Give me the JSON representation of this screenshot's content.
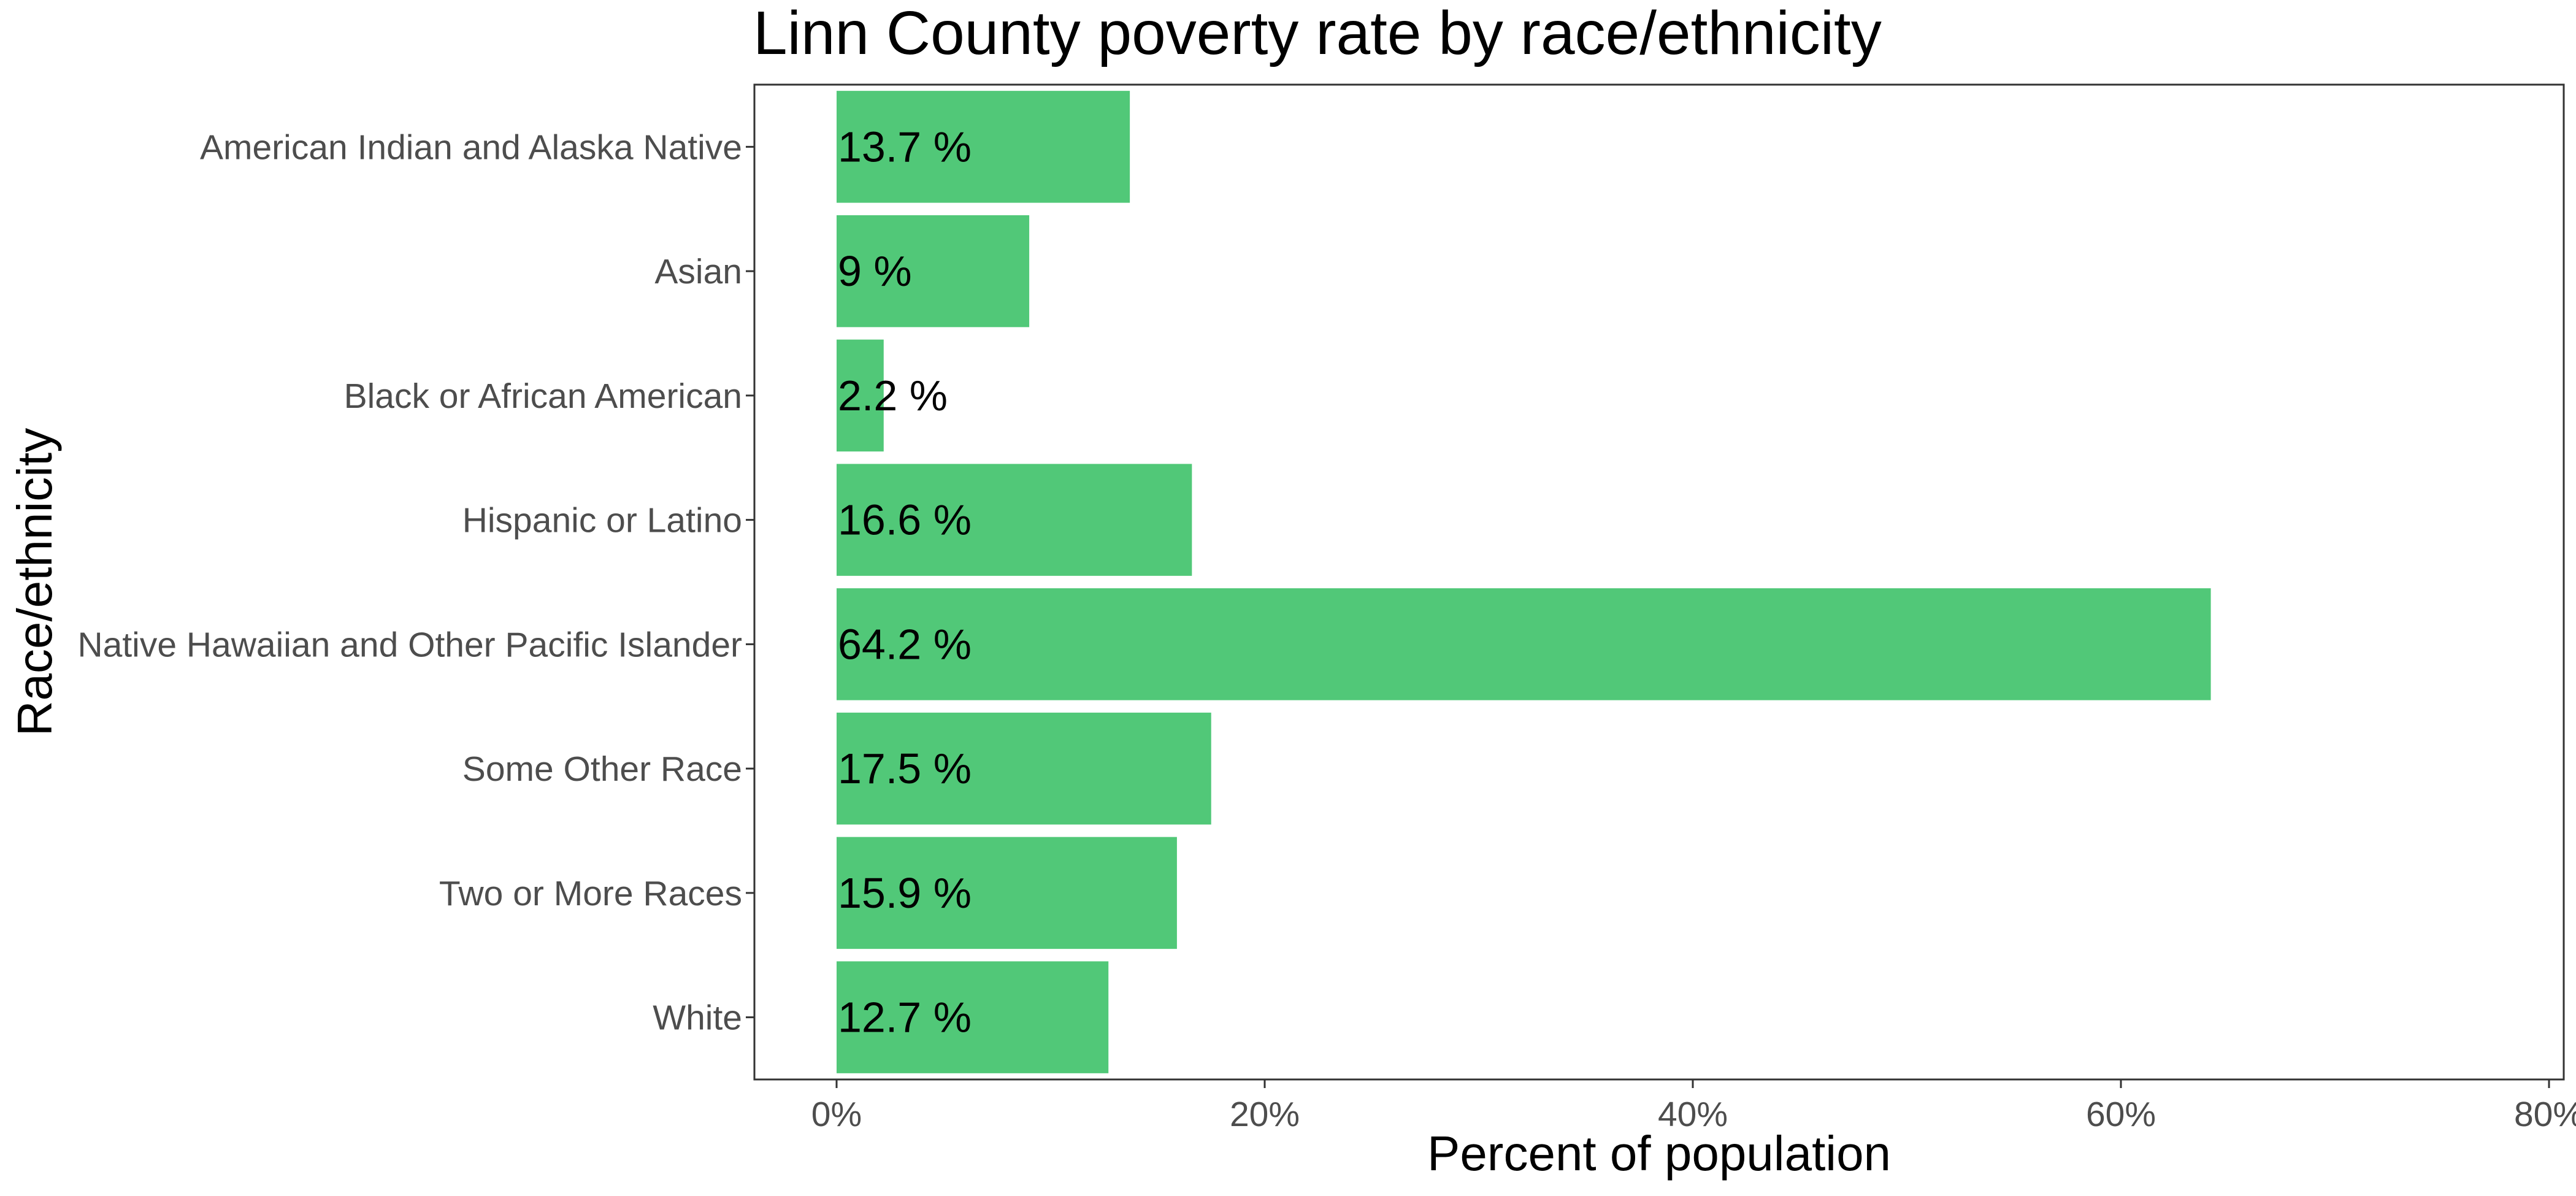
{
  "chart_data": {
    "type": "bar",
    "orientation": "horizontal",
    "title": "Linn County poverty rate by race/ethnicity",
    "xlabel": "Percent of population",
    "ylabel": "Race/ethnicity",
    "categories": [
      "American Indian and Alaska Native",
      "Asian",
      "Black or African American",
      "Hispanic or Latino",
      "Native Hawaiian and Other Pacific Islander",
      "Some Other Race",
      "Two or More Races",
      "White"
    ],
    "values": [
      13.7,
      9,
      2.2,
      16.6,
      64.2,
      17.5,
      15.9,
      12.7
    ],
    "data_labels": [
      "13.7 %",
      "9 %",
      "2.2 %",
      "16.6 %",
      "64.2 %",
      "17.5 %",
      "15.9 %",
      "12.7 %"
    ],
    "xlim": [
      0,
      80
    ],
    "x_ticks": [
      0,
      20,
      40,
      60,
      80
    ],
    "x_tick_labels": [
      "0%",
      "20%",
      "40%",
      "60%",
      "80%"
    ],
    "grid": false,
    "legend": "none",
    "bar_color": "#51C878"
  }
}
